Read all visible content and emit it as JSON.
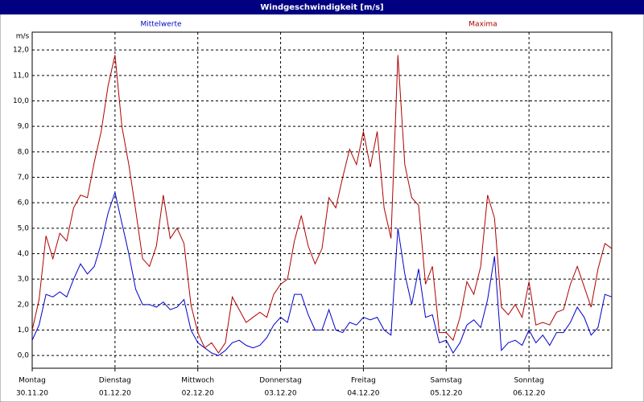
{
  "chart_data": {
    "type": "line",
    "title": "Windgeschwindigkeit [m/s]",
    "y_label": "m/s",
    "x": [
      0,
      2,
      4,
      6,
      8,
      10,
      12,
      14,
      16,
      18,
      20,
      22,
      24,
      26,
      28,
      30,
      32,
      34,
      36,
      38,
      40,
      42,
      44,
      46,
      48,
      50,
      52,
      54,
      56,
      58,
      60,
      62,
      64,
      66,
      68,
      70,
      72,
      74,
      76,
      78,
      80,
      82,
      84,
      86,
      88,
      90,
      92,
      94,
      96,
      98,
      100,
      102,
      104,
      106,
      108,
      110,
      112,
      114,
      116,
      118,
      120,
      122,
      124,
      126,
      128,
      130,
      132,
      134,
      136,
      138,
      140,
      142,
      144,
      146,
      148,
      150,
      152,
      154,
      156,
      158,
      160,
      162,
      164,
      166,
      168
    ],
    "xlim": [
      0,
      168
    ],
    "xticks": [
      {
        "value": 0,
        "label": "Montag"
      },
      {
        "value": 24,
        "label": "Dienstag"
      },
      {
        "value": 48,
        "label": "Mittwoch"
      },
      {
        "value": 72,
        "label": "Donnerstag"
      },
      {
        "value": 96,
        "label": "Freitag"
      },
      {
        "value": 120,
        "label": "Samstag"
      },
      {
        "value": 144,
        "label": "Sonntag"
      }
    ],
    "xtick_dates": [
      "30.11.20",
      "01.12.20",
      "02.12.20",
      "03.12.20",
      "04.12.20",
      "05.12.20",
      "06.12.20"
    ],
    "ylim": [
      -0.5,
      12.7
    ],
    "yticks": [
      {
        "value": 0,
        "label": "0,0"
      },
      {
        "value": 1,
        "label": "1,0"
      },
      {
        "value": 2,
        "label": "2,0"
      },
      {
        "value": 3,
        "label": "3,0"
      },
      {
        "value": 4,
        "label": "4,0"
      },
      {
        "value": 5,
        "label": "5,0"
      },
      {
        "value": 6,
        "label": "6,0"
      },
      {
        "value": 7,
        "label": "7,0"
      },
      {
        "value": 8,
        "label": "8,0"
      },
      {
        "value": 9,
        "label": "9,0"
      },
      {
        "value": 10,
        "label": "10,0"
      },
      {
        "value": 11,
        "label": "11,0"
      },
      {
        "value": 12,
        "label": "12,0"
      }
    ],
    "grid": true,
    "series": [
      {
        "name": "Mittelwerte",
        "color": "#0000cc",
        "values": [
          0.6,
          1.2,
          2.4,
          2.3,
          2.5,
          2.3,
          3.0,
          3.6,
          3.2,
          3.5,
          4.4,
          5.6,
          6.4,
          5.2,
          4.0,
          2.6,
          2.0,
          2.0,
          1.9,
          2.1,
          1.8,
          1.9,
          2.2,
          1.0,
          0.5,
          0.3,
          0.1,
          0.0,
          0.2,
          0.5,
          0.6,
          0.4,
          0.3,
          0.4,
          0.7,
          1.2,
          1.5,
          1.3,
          2.4,
          2.4,
          1.6,
          1.0,
          1.0,
          1.8,
          1.0,
          0.9,
          1.3,
          1.2,
          1.5,
          1.4,
          1.5,
          1.0,
          0.8,
          5.0,
          3.2,
          2.0,
          3.4,
          1.5,
          1.6,
          0.5,
          0.6,
          0.1,
          0.5,
          1.2,
          1.4,
          1.1,
          2.2,
          3.9,
          0.2,
          0.5,
          0.6,
          0.4,
          1.0,
          0.5,
          0.8,
          0.4,
          0.9,
          0.9,
          1.3,
          1.9,
          1.5,
          0.8,
          1.1,
          2.4,
          2.3
        ]
      },
      {
        "name": "Maxima",
        "color": "#b00000",
        "values": [
          1.0,
          2.2,
          4.7,
          3.8,
          4.8,
          4.5,
          5.8,
          6.3,
          6.2,
          7.6,
          8.8,
          10.6,
          11.8,
          9.0,
          7.5,
          5.7,
          3.8,
          3.5,
          4.3,
          6.3,
          4.6,
          5.0,
          4.4,
          2.0,
          0.9,
          0.3,
          0.5,
          0.1,
          0.5,
          2.3,
          1.8,
          1.3,
          1.5,
          1.7,
          1.5,
          2.4,
          2.8,
          3.0,
          4.5,
          5.5,
          4.3,
          3.6,
          4.2,
          6.2,
          5.8,
          7.0,
          8.1,
          7.5,
          8.8,
          7.4,
          8.8,
          5.8,
          4.6,
          11.8,
          7.5,
          6.2,
          5.9,
          2.8,
          3.5,
          0.9,
          0.9,
          0.6,
          1.5,
          2.9,
          2.4,
          3.5,
          6.3,
          5.4,
          1.9,
          1.6,
          2.0,
          1.5,
          2.9,
          1.2,
          1.3,
          1.2,
          1.7,
          1.8,
          2.8,
          3.5,
          2.7,
          1.9,
          3.4,
          4.4,
          4.2
        ]
      }
    ]
  }
}
